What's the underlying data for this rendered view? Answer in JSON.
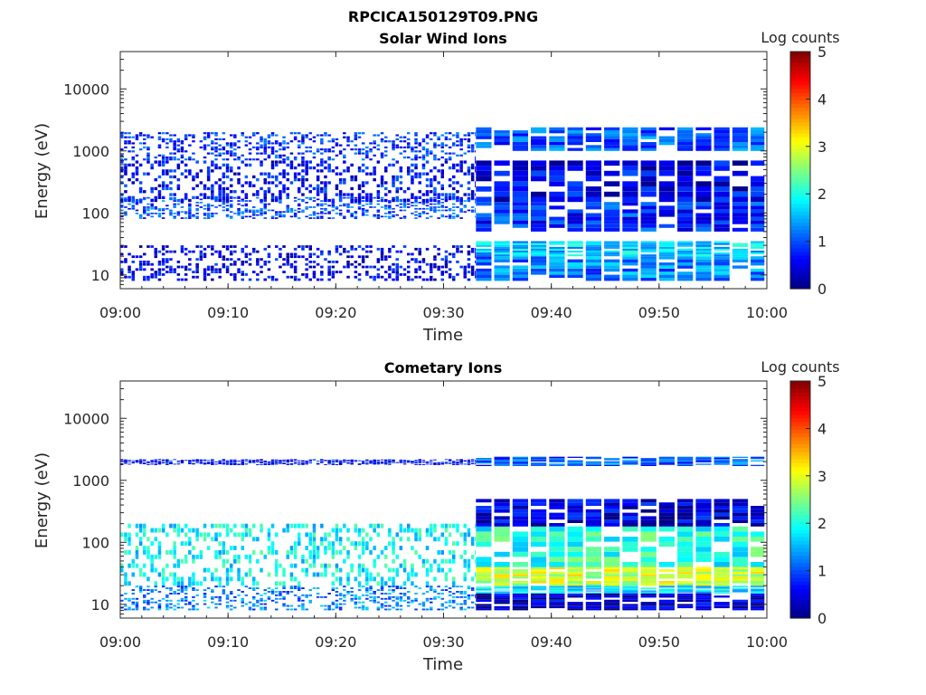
{
  "figure_title": "RPCICA150129T09.PNG",
  "chart_data": [
    {
      "type": "heatmap",
      "title": "Solar Wind Ions",
      "xlabel": "Time",
      "ylabel": "Energy (eV)",
      "x_tick_labels": [
        "09:00",
        "09:10",
        "09:20",
        "09:30",
        "09:40",
        "09:50",
        "10:00"
      ],
      "x_range_minutes": [
        0,
        60
      ],
      "y_scale": "log",
      "y_tick_values": [
        10,
        100,
        1000,
        10000
      ],
      "y_tick_labels": [
        "10",
        "100",
        "1000",
        "10000"
      ],
      "y_range": [
        6,
        40000
      ],
      "colorbar": {
        "label": "Log counts",
        "ticks": [
          "0",
          "1",
          "2",
          "3",
          "4",
          "5"
        ],
        "range": [
          0,
          5
        ],
        "colormap": "jet"
      },
      "sparse_before_minute": 33,
      "main_band_ev": 100,
      "segments": [
        {
          "t0": 0,
          "t1": 33,
          "e0": 80,
          "e1": 180,
          "v": 0.9
        },
        {
          "t0": 0,
          "t1": 33,
          "e0": 150,
          "e1": 700,
          "v": 0.6
        },
        {
          "t0": 0,
          "t1": 33,
          "e0": 700,
          "e1": 2000,
          "v": 0.8
        },
        {
          "t0": 0,
          "t1": 33,
          "e0": 8,
          "e1": 30,
          "v": 0.5
        },
        {
          "t0": 33,
          "t1": 60,
          "e0": 8,
          "e1": 20,
          "v": 1.2
        },
        {
          "t0": 33,
          "t1": 60,
          "e0": 20,
          "e1": 35,
          "v": 1.6
        },
        {
          "t0": 33,
          "t1": 60,
          "e0": 50,
          "e1": 150,
          "v": 0.8
        },
        {
          "t0": 33,
          "t1": 60,
          "e0": 150,
          "e1": 700,
          "v": 0.5
        },
        {
          "t0": 33,
          "t1": 60,
          "e0": 1000,
          "e1": 2400,
          "v": 1.0
        }
      ]
    },
    {
      "type": "heatmap",
      "title": "Cometary Ions",
      "xlabel": "Time",
      "ylabel": "Energy (eV)",
      "x_tick_labels": [
        "09:00",
        "09:10",
        "09:20",
        "09:30",
        "09:40",
        "09:50",
        "10:00"
      ],
      "x_range_minutes": [
        0,
        60
      ],
      "y_scale": "log",
      "y_tick_values": [
        10,
        100,
        1000,
        10000
      ],
      "y_tick_labels": [
        "10",
        "100",
        "1000",
        "10000"
      ],
      "y_range": [
        6,
        40000
      ],
      "colorbar": {
        "label": "Log counts",
        "ticks": [
          "0",
          "1",
          "2",
          "3",
          "4",
          "5"
        ],
        "range": [
          0,
          5
        ],
        "colormap": "jet"
      },
      "sparse_before_minute": 33,
      "main_band_ev": 100,
      "segments": [
        {
          "t0": 0,
          "t1": 33,
          "e0": 20,
          "e1": 200,
          "v": 1.8
        },
        {
          "t0": 0,
          "t1": 33,
          "e0": 8,
          "e1": 20,
          "v": 1.2
        },
        {
          "t0": 0,
          "t1": 33,
          "e0": 1800,
          "e1": 2200,
          "v": 0.6
        },
        {
          "t0": 33,
          "t1": 60,
          "e0": 8,
          "e1": 15,
          "v": 0.3
        },
        {
          "t0": 33,
          "t1": 60,
          "e0": 15,
          "e1": 20,
          "v": 1.6
        },
        {
          "t0": 33,
          "t1": 60,
          "e0": 20,
          "e1": 40,
          "v": 2.8
        },
        {
          "t0": 33,
          "t1": 60,
          "e0": 40,
          "e1": 180,
          "v": 2.0
        },
        {
          "t0": 33,
          "t1": 60,
          "e0": 180,
          "e1": 500,
          "v": 0.4
        },
        {
          "t0": 33,
          "t1": 60,
          "e0": 1700,
          "e1": 2400,
          "v": 1.0
        }
      ]
    }
  ]
}
